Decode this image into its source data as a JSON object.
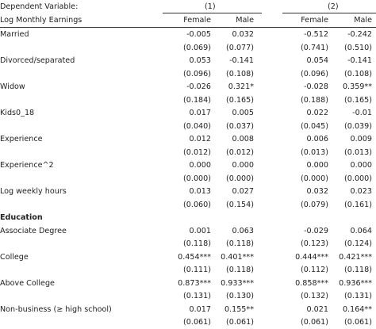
{
  "header": {
    "dependent_label": "Dependent Variable:",
    "dependent_var": "Log Monthly Earnings",
    "models": [
      "(1)",
      "(2)"
    ],
    "columns": [
      "Female",
      "Male",
      "Female",
      "Male"
    ]
  },
  "rows": [
    {
      "label": "Married",
      "type": "coef",
      "values": [
        "-0.005",
        "0.032",
        "-0.512",
        "-0.242"
      ]
    },
    {
      "label": "",
      "type": "se",
      "values": [
        "(0.069)",
        "(0.077)",
        "(0.741)",
        "(0.510)"
      ]
    },
    {
      "label": "Divorced/separated",
      "type": "coef",
      "values": [
        "0.053",
        "-0.141",
        "0.054",
        "-0.141"
      ]
    },
    {
      "label": "",
      "type": "se",
      "values": [
        "(0.096)",
        "(0.108)",
        "(0.096)",
        "(0.108)"
      ]
    },
    {
      "label": "Widow",
      "type": "coef",
      "values": [
        "-0.026",
        "0.321*",
        "-0.028",
        "0.359**"
      ]
    },
    {
      "label": "",
      "type": "se",
      "values": [
        "(0.184)",
        "(0.165)",
        "(0.188)",
        "(0.165)"
      ]
    },
    {
      "label": "Kids0_18",
      "type": "coef",
      "values": [
        "0.017",
        "0.005",
        "0.022",
        "-0.01"
      ]
    },
    {
      "label": "",
      "type": "se",
      "values": [
        "(0.040)",
        "(0.037)",
        "(0.045)",
        "(0.039)"
      ]
    },
    {
      "label": "Experience",
      "type": "coef",
      "values": [
        "0.012",
        "0.008",
        "0.006",
        "0.009"
      ]
    },
    {
      "label": "",
      "type": "se",
      "values": [
        "(0.012)",
        "(0.012)",
        "(0.013)",
        "(0.013)"
      ]
    },
    {
      "label": "Experience^2",
      "type": "coef",
      "values": [
        "0.000",
        "0.000",
        "0.000",
        "0.000"
      ]
    },
    {
      "label": "",
      "type": "se",
      "values": [
        "(0.000)",
        "(0.000)",
        "(0.000)",
        "(0.000)"
      ]
    },
    {
      "label": "Log weekly hours",
      "type": "coef",
      "values": [
        "0.013",
        "0.027",
        "0.032",
        "0.023"
      ]
    },
    {
      "label": "",
      "type": "se",
      "values": [
        "(0.060)",
        "(0.154)",
        "(0.079)",
        "(0.161)"
      ]
    },
    {
      "label": "Education",
      "type": "section",
      "values": [
        "",
        "",
        "",
        ""
      ]
    },
    {
      "label": "Associate Degree",
      "type": "coef",
      "values": [
        "0.001",
        "0.063",
        "-0.029",
        "0.064"
      ]
    },
    {
      "label": "",
      "type": "se",
      "values": [
        "(0.118)",
        "(0.118)",
        "(0.123)",
        "(0.124)"
      ]
    },
    {
      "label": "College",
      "type": "coef",
      "values": [
        "0.454***",
        "0.401***",
        "0.444***",
        "0.421***"
      ]
    },
    {
      "label": "",
      "type": "se",
      "values": [
        "(0.111)",
        "(0.118)",
        "(0.112)",
        "(0.118)"
      ]
    },
    {
      "label": "Above College",
      "type": "coef",
      "values": [
        "0.873***",
        "0.933***",
        "0.858***",
        "0.936***"
      ]
    },
    {
      "label": "",
      "type": "se",
      "values": [
        "(0.131)",
        "(0.130)",
        "(0.132)",
        "(0.131)"
      ]
    },
    {
      "label": "Non-business (≥ high school)",
      "type": "coef",
      "values": [
        "0.017",
        "0.155**",
        "0.021",
        "0.164**"
      ]
    },
    {
      "label": "",
      "type": "se",
      "values": [
        "(0.061)",
        "(0.061)",
        "(0.061)",
        "(0.061)"
      ]
    }
  ]
}
